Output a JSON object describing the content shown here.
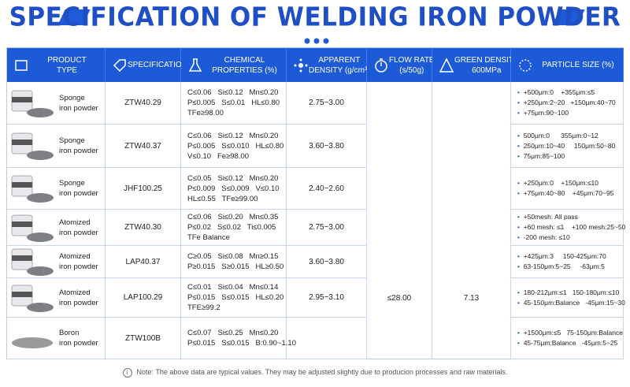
{
  "header": {
    "title": "SPECIFICATION OF WELDING IRON POWDER"
  },
  "table": {
    "columns": [
      [
        "PRODUCT",
        "TYPE"
      ],
      [
        "SPECIFICATIONS"
      ],
      [
        "CHEMICAL",
        "PROPERTIES (%)"
      ],
      [
        "APPARENT",
        "DENSITY (g/cm³)"
      ],
      [
        "FLOW RATE",
        "(s/50g)"
      ],
      [
        "GREEN DENSITY",
        "600MPa"
      ],
      [
        "PARTICLE SIZE (%)"
      ]
    ],
    "rows": [
      {
        "product": [
          "Sponge",
          "iron powder"
        ],
        "spec": "ZTW40.29",
        "chemical": [
          "C≤0.06   Si≤0.12   Mn≤0.20",
          "P≤0.005   S≤0.01   HL≤0.80",
          "TFe≥98.00"
        ],
        "density": "2.75~3.00",
        "particle": [
          "+500μm:0    +355μm:≤5",
          "+250μm:2~20   +150μm:40~70",
          "+75μm:90~100"
        ]
      },
      {
        "product": [
          "Sponge",
          "iron powder"
        ],
        "spec": "ZTW40.37",
        "chemical": [
          "C≤0.06   Si≤0.12   Mn≤0.20",
          "P≤0.005   S≤0.010   HL≤0.80",
          "V≤0.10   Fe≥98.00"
        ],
        "density": "3.60~3.80",
        "particle": [
          "500μm:0      355μm:0~12",
          "250μm:10~40     150μm:50~80",
          "75μm:85~100"
        ]
      },
      {
        "product": [
          "Sponge",
          "iron powder"
        ],
        "spec": "JHF100.25",
        "chemical": [
          "C≤0.05   Si≤0.12   Mn≤0.20",
          "P≤0.009   S≤0.009   V≤0.10",
          "HL≤0.55   TFe≥99.00"
        ],
        "density": "2.40~2.60",
        "particle": [
          "+250μm:0    +150μm:≤10",
          "+75μm:40~80    +45μm:70~95"
        ]
      },
      {
        "product": [
          "Atomized",
          "iron powder"
        ],
        "spec": "ZTW40.30",
        "chemical": [
          "C≤0.06   Si≤0.20   Mn≤0.35",
          "P≤0.02   S≤0.02   Ti≤0.005",
          "TFe Balance"
        ],
        "density": "2.75~3.00",
        "particle": [
          "+50mesh: All pass",
          "+60 mesh: ≤1    +100 mesh:25~50",
          "-200 mesh: ≤10"
        ]
      },
      {
        "product": [
          "Atomized",
          "iron powder"
        ],
        "spec": "LAP40.37",
        "chemical": [
          "C≥0.05   Si≤0.08   Mn≥0.15",
          "P≥0.015   S≥0.015   HL≥0.50"
        ],
        "density": "3.60~3.80",
        "particle": [
          "+425μm:3     150-425μm:70",
          "63-150μm:5~25     -63μm:5"
        ]
      },
      {
        "product": [
          "Atomized",
          "iron powder"
        ],
        "spec": "LAP100.29",
        "chemical": [
          "C≤0.01   Si≤0.04   Mn≤0.14",
          "P≤0.015   S≤0.015   HL≤0.20",
          "TFE≥99.2"
        ],
        "density": "2.95~3.10",
        "flow_rate": "≤28.00",
        "green_density": "7.13",
        "particle": [
          "180-212μm:≤1   150-180μm:≤10",
          "45-150μm:Balance   -45μm:15~30"
        ]
      },
      {
        "product": [
          "Boron",
          "iron powder"
        ],
        "spec": "ZTW100B",
        "chemical": [
          "C≤0.07   Si≤0.25   Mn≤0.20",
          "P≤0.015   S≤0.015   B:0.90~1.10"
        ],
        "particle": [
          "+1500μm:≤5   75-150μm:Balance",
          "45-75μm:Balance   -45μm:5~25"
        ]
      }
    ]
  },
  "note": "Note: The above data are typical values. They may be adjusted slightly due to producion processes and raw materials."
}
